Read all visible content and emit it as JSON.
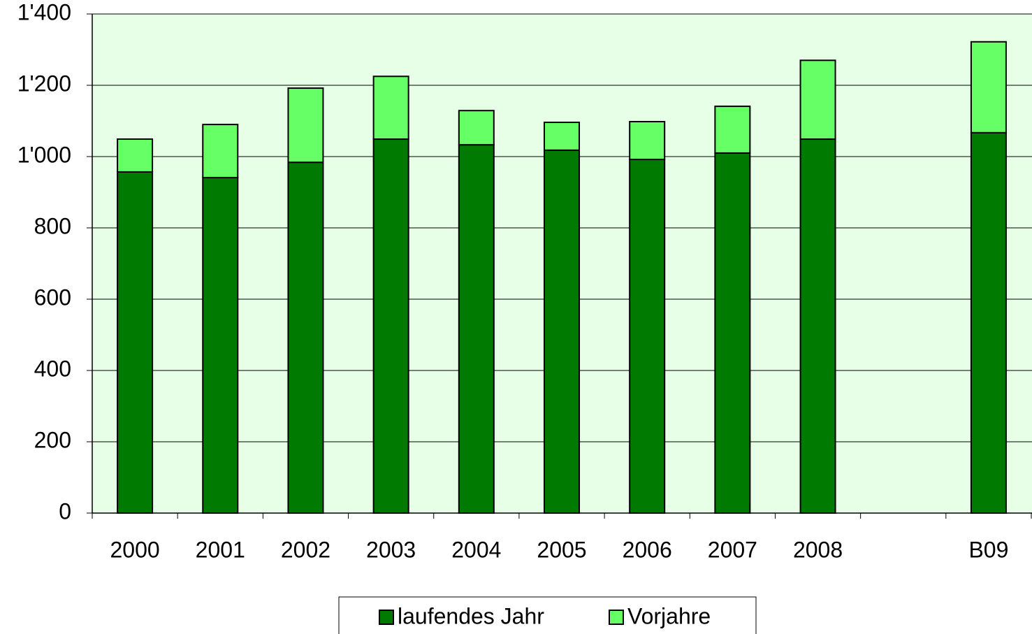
{
  "chart_data": {
    "type": "stacked_bar",
    "categories": [
      "2000",
      "2001",
      "2002",
      "2003",
      "2004",
      "2005",
      "2006",
      "2007",
      "2008",
      null,
      "B09"
    ],
    "series": [
      {
        "name": "laufendes Jahr",
        "color": "#007a00",
        "values": [
          957,
          941,
          984,
          1049,
          1033,
          1018,
          992,
          1010,
          1049,
          null,
          1067
        ]
      },
      {
        "name": "Vorjahre",
        "color": "#66ff66",
        "values": [
          92,
          149,
          208,
          176,
          96,
          78,
          106,
          131,
          221,
          null,
          255
        ]
      }
    ],
    "ylim": [
      0,
      1400
    ],
    "yticks": [
      0,
      200,
      400,
      600,
      800,
      {
        "value": 1000,
        "label": "1'000"
      },
      {
        "value": 1200,
        "label": "1'200"
      },
      {
        "value": 1400,
        "label": "1'400"
      }
    ],
    "grid": true,
    "background": "#e6ffe6",
    "legend": "bottom"
  }
}
